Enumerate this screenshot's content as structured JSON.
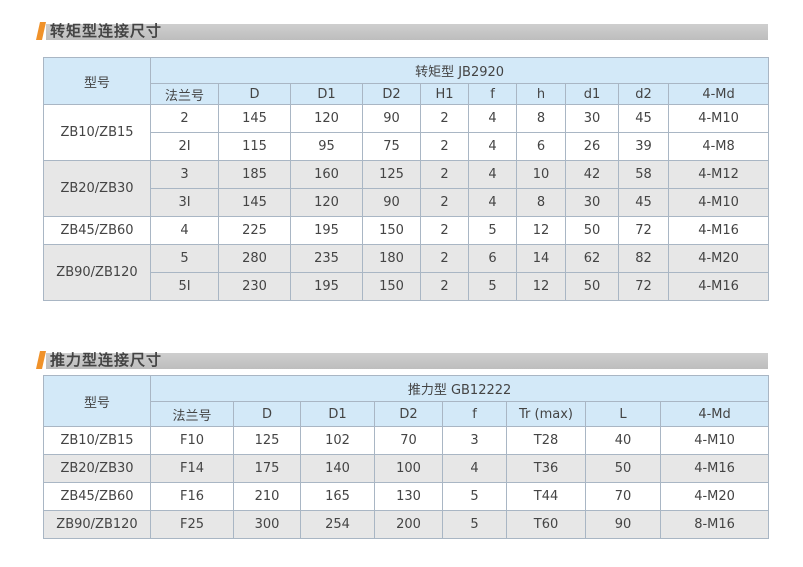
{
  "section1": {
    "title": "转矩型连接尺寸",
    "group_header": "转矩型 JB2920",
    "model_header": "型号",
    "columns": [
      "法兰号",
      "D",
      "D1",
      "D2",
      "H1",
      "f",
      "h",
      "d1",
      "d2",
      "4-Md"
    ],
    "groups": [
      {
        "model": "ZB10/ZB15",
        "rows": [
          [
            "2",
            "145",
            "120",
            "90",
            "2",
            "4",
            "8",
            "30",
            "45",
            "4-M10"
          ],
          [
            "2I",
            "115",
            "95",
            "75",
            "2",
            "4",
            "6",
            "26",
            "39",
            "4-M8"
          ]
        ]
      },
      {
        "model": "ZB20/ZB30",
        "rows": [
          [
            "3",
            "185",
            "160",
            "125",
            "2",
            "4",
            "10",
            "42",
            "58",
            "4-M12"
          ],
          [
            "3I",
            "145",
            "120",
            "90",
            "2",
            "4",
            "8",
            "30",
            "45",
            "4-M10"
          ]
        ]
      },
      {
        "model": "ZB45/ZB60",
        "rows": [
          [
            "4",
            "225",
            "195",
            "150",
            "2",
            "5",
            "12",
            "50",
            "72",
            "4-M16"
          ]
        ]
      },
      {
        "model": "ZB90/ZB120",
        "rows": [
          [
            "5",
            "280",
            "235",
            "180",
            "2",
            "6",
            "14",
            "62",
            "82",
            "4-M20"
          ],
          [
            "5I",
            "230",
            "195",
            "150",
            "2",
            "5",
            "12",
            "50",
            "72",
            "4-M16"
          ]
        ]
      }
    ]
  },
  "section2": {
    "title": "推力型连接尺寸",
    "group_header": "推力型 GB12222",
    "model_header": "型号",
    "columns": [
      "法兰号",
      "D",
      "D1",
      "D2",
      "f",
      "Tr (max)",
      "L",
      "4-Md"
    ],
    "rows": [
      [
        "ZB10/ZB15",
        "F10",
        "125",
        "102",
        "70",
        "3",
        "T28",
        "40",
        "4-M10"
      ],
      [
        "ZB20/ZB30",
        "F14",
        "175",
        "140",
        "100",
        "4",
        "T36",
        "50",
        "4-M16"
      ],
      [
        "ZB45/ZB60",
        "F16",
        "210",
        "165",
        "130",
        "5",
        "T44",
        "70",
        "4-M20"
      ],
      [
        "ZB90/ZB120",
        "F25",
        "300",
        "254",
        "200",
        "5",
        "T60",
        "90",
        "8-M16"
      ]
    ]
  },
  "colors": {
    "accent": "#f0922a",
    "header_bg": "#d3e9f8",
    "stripe": "#e7e7e7"
  }
}
